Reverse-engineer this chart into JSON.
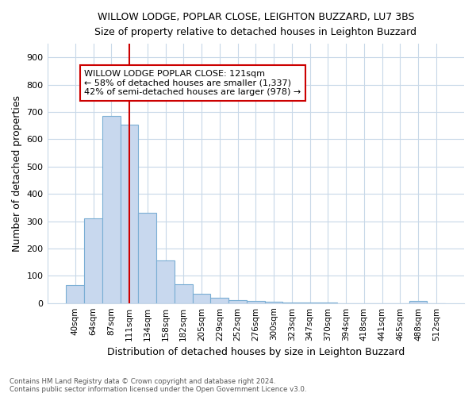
{
  "title1": "WILLOW LODGE, POPLAR CLOSE, LEIGHTON BUZZARD, LU7 3BS",
  "title2": "Size of property relative to detached houses in Leighton Buzzard",
  "xlabel": "Distribution of detached houses by size in Leighton Buzzard",
  "ylabel": "Number of detached properties",
  "footer": "Contains HM Land Registry data © Crown copyright and database right 2024.\nContains public sector information licensed under the Open Government Licence v3.0.",
  "bin_labels": [
    "40sqm",
    "64sqm",
    "87sqm",
    "111sqm",
    "134sqm",
    "158sqm",
    "182sqm",
    "205sqm",
    "229sqm",
    "252sqm",
    "276sqm",
    "300sqm",
    "323sqm",
    "347sqm",
    "370sqm",
    "394sqm",
    "418sqm",
    "441sqm",
    "465sqm",
    "488sqm",
    "512sqm"
  ],
  "bar_values": [
    65,
    310,
    685,
    655,
    330,
    155,
    68,
    35,
    18,
    12,
    8,
    5,
    3,
    2,
    1,
    0,
    0,
    0,
    0,
    8,
    0
  ],
  "bar_color": "#c8d8ee",
  "bar_edge_color": "#7aaed4",
  "vline_x": 3,
  "vline_color": "#cc0000",
  "annotation_text": "WILLOW LODGE POPLAR CLOSE: 121sqm\n← 58% of detached houses are smaller (1,337)\n42% of semi-detached houses are larger (978) →",
  "annotation_box_color": "#ffffff",
  "annotation_box_edge": "#cc0000",
  "ylim": [
    0,
    950
  ],
  "yticks": [
    0,
    100,
    200,
    300,
    400,
    500,
    600,
    700,
    800,
    900
  ],
  "grid_color": "#c8d8e8",
  "bg_color": "#ffffff",
  "fig_bg_color": "#ffffff"
}
